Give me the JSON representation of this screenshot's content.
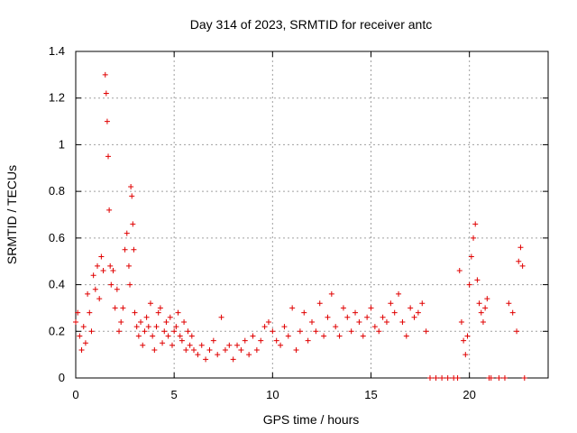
{
  "chart_data": {
    "type": "scatter",
    "title": "Day 314 of 2023, SRMTID for receiver antc",
    "xlabel": "GPS time / hours",
    "ylabel": "SRMTID / TECUs",
    "xlim": [
      0,
      24
    ],
    "ylim": [
      0,
      1.4
    ],
    "xticks": [
      0,
      5,
      10,
      15,
      20
    ],
    "xtick_labels": [
      "0",
      "5",
      "10",
      "15",
      "20"
    ],
    "yticks": [
      0,
      0.2,
      0.4,
      0.6,
      0.8,
      1.0,
      1.2,
      1.4
    ],
    "ytick_labels": [
      "0",
      "0.2",
      "0.4",
      "0.6",
      "0.8",
      "1",
      "1.2",
      "1.4"
    ],
    "grid": true,
    "marker": "+",
    "color": "#e00000",
    "series": [
      {
        "name": "SRMTID",
        "x": [
          0.0,
          0.1,
          0.2,
          0.3,
          0.4,
          0.5,
          0.6,
          0.7,
          0.8,
          0.9,
          1.0,
          1.1,
          1.2,
          1.3,
          1.4,
          1.5,
          1.55,
          1.6,
          1.65,
          1.7,
          1.75,
          1.8,
          1.9,
          2.0,
          2.1,
          2.2,
          2.3,
          2.4,
          2.5,
          2.6,
          2.7,
          2.75,
          2.8,
          2.85,
          2.9,
          2.95,
          3.0,
          3.1,
          3.2,
          3.3,
          3.4,
          3.5,
          3.6,
          3.7,
          3.8,
          3.9,
          4.0,
          4.1,
          4.2,
          4.3,
          4.4,
          4.5,
          4.6,
          4.7,
          4.8,
          4.9,
          5.0,
          5.1,
          5.2,
          5.3,
          5.4,
          5.5,
          5.6,
          5.7,
          5.8,
          5.9,
          6.0,
          6.2,
          6.4,
          6.6,
          6.8,
          7.0,
          7.2,
          7.4,
          7.6,
          7.8,
          8.0,
          8.2,
          8.4,
          8.6,
          8.8,
          9.0,
          9.2,
          9.4,
          9.6,
          9.8,
          10.0,
          10.2,
          10.4,
          10.6,
          10.8,
          11.0,
          11.2,
          11.4,
          11.6,
          11.8,
          12.0,
          12.2,
          12.4,
          12.6,
          12.8,
          13.0,
          13.2,
          13.4,
          13.6,
          13.8,
          14.0,
          14.2,
          14.4,
          14.6,
          14.8,
          15.0,
          15.2,
          15.4,
          15.6,
          15.8,
          16.0,
          16.2,
          16.4,
          16.6,
          16.8,
          17.0,
          17.2,
          17.4,
          17.6,
          17.8,
          18.0,
          18.3,
          18.6,
          18.9,
          19.2,
          19.4,
          19.5,
          19.6,
          19.7,
          19.8,
          19.9,
          20.0,
          20.1,
          20.2,
          20.3,
          20.4,
          20.5,
          20.6,
          20.7,
          20.8,
          20.9,
          21.0,
          21.1,
          21.5,
          21.8,
          22.0,
          22.2,
          22.4,
          22.5,
          22.6,
          22.7,
          22.8
        ],
        "y": [
          0.24,
          0.28,
          0.18,
          0.12,
          0.22,
          0.15,
          0.36,
          0.28,
          0.2,
          0.44,
          0.38,
          0.48,
          0.34,
          0.52,
          0.46,
          1.3,
          1.22,
          1.1,
          0.95,
          0.72,
          0.48,
          0.4,
          0.46,
          0.3,
          0.38,
          0.2,
          0.24,
          0.3,
          0.55,
          0.62,
          0.48,
          0.4,
          0.82,
          0.78,
          0.66,
          0.55,
          0.28,
          0.22,
          0.18,
          0.24,
          0.14,
          0.2,
          0.26,
          0.22,
          0.32,
          0.18,
          0.12,
          0.22,
          0.28,
          0.3,
          0.15,
          0.2,
          0.24,
          0.18,
          0.26,
          0.14,
          0.2,
          0.22,
          0.28,
          0.18,
          0.16,
          0.24,
          0.12,
          0.2,
          0.14,
          0.18,
          0.12,
          0.1,
          0.14,
          0.08,
          0.12,
          0.16,
          0.1,
          0.26,
          0.12,
          0.14,
          0.08,
          0.14,
          0.12,
          0.16,
          0.1,
          0.18,
          0.12,
          0.16,
          0.22,
          0.24,
          0.2,
          0.16,
          0.14,
          0.22,
          0.18,
          0.3,
          0.12,
          0.2,
          0.28,
          0.16,
          0.24,
          0.2,
          0.32,
          0.18,
          0.26,
          0.36,
          0.22,
          0.18,
          0.3,
          0.26,
          0.2,
          0.28,
          0.24,
          0.18,
          0.26,
          0.3,
          0.22,
          0.2,
          0.26,
          0.24,
          0.32,
          0.28,
          0.36,
          0.24,
          0.18,
          0.3,
          0.26,
          0.28,
          0.32,
          0.2,
          0.0,
          0.0,
          0.0,
          0.0,
          0.0,
          0.0,
          0.46,
          0.24,
          0.16,
          0.1,
          0.18,
          0.4,
          0.52,
          0.6,
          0.66,
          0.42,
          0.32,
          0.28,
          0.24,
          0.3,
          0.34,
          0.0,
          0.0,
          0.0,
          0.0,
          0.32,
          0.28,
          0.2,
          0.5,
          0.56,
          0.48,
          0.0
        ]
      }
    ]
  }
}
